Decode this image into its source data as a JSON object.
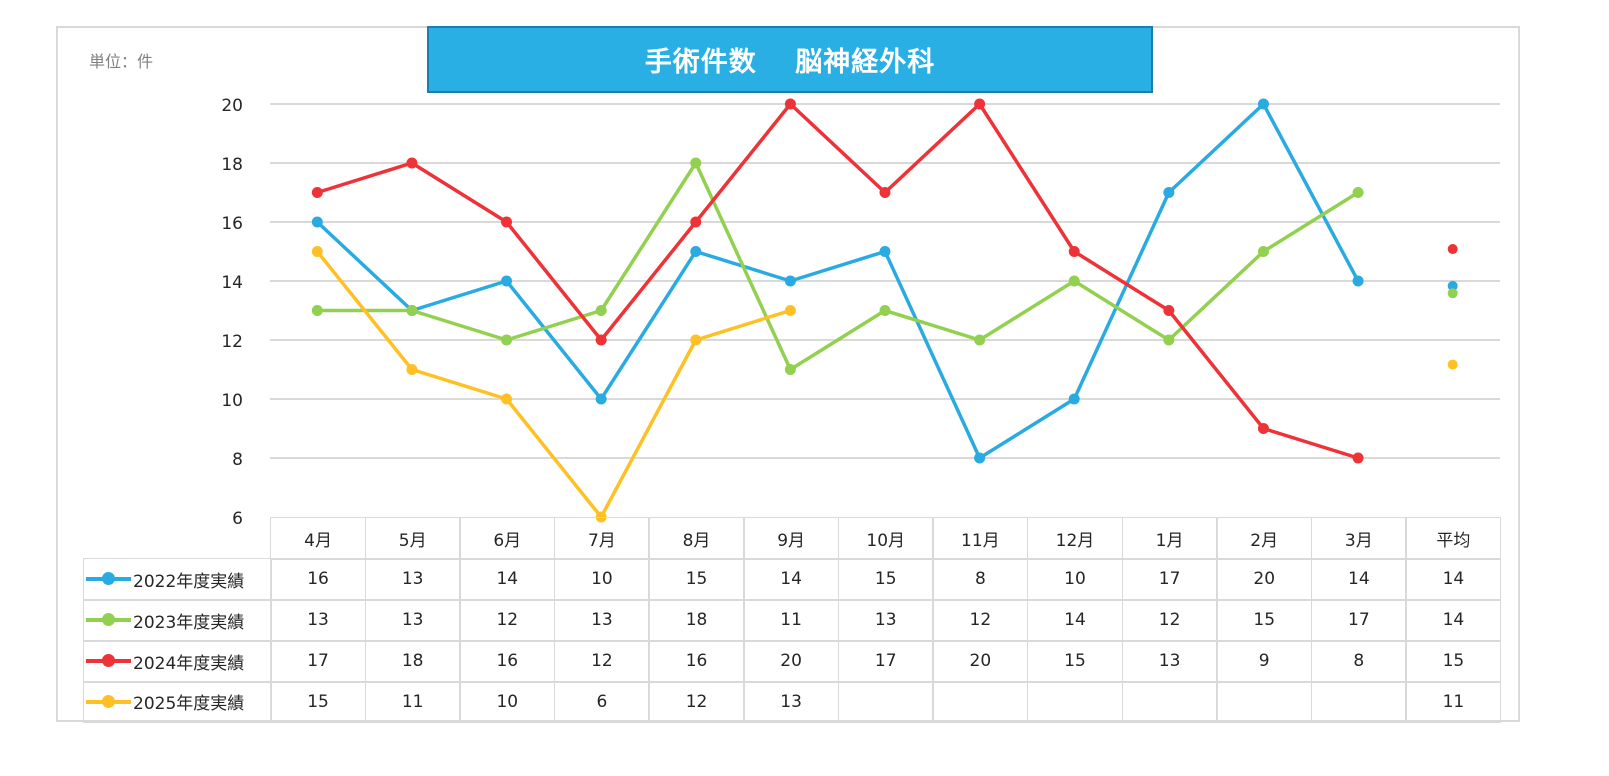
{
  "unit_label": "単位：件",
  "chart_data": {
    "type": "line",
    "title": "手術件数　 脳神経外科",
    "categories": [
      "4月",
      "5月",
      "6月",
      "7月",
      "8月",
      "9月",
      "10月",
      "11月",
      "12月",
      "1月",
      "2月",
      "3月"
    ],
    "avg_label": "平均",
    "ylim": [
      6,
      20
    ],
    "yticks": [
      "6",
      "8",
      "10",
      "12",
      "14",
      "16",
      "18",
      "20"
    ],
    "grid": true,
    "legend": "data-table-left",
    "series": [
      {
        "name": "2022年度実績",
        "color": "#29abe2",
        "values": [
          16,
          13,
          14,
          10,
          15,
          14,
          15,
          8,
          10,
          17,
          20,
          14
        ],
        "avg": "14"
      },
      {
        "name": "2023年度実績",
        "color": "#92d050",
        "values": [
          13,
          13,
          12,
          13,
          18,
          11,
          13,
          12,
          14,
          12,
          15,
          17
        ],
        "avg": "14"
      },
      {
        "name": "2024年度実績",
        "color": "#ee3338",
        "values": [
          17,
          18,
          16,
          12,
          16,
          20,
          17,
          20,
          15,
          13,
          9,
          8
        ],
        "avg": "15"
      },
      {
        "name": "2025年度実績",
        "color": "#ffc024",
        "values": [
          15,
          11,
          10,
          6,
          12,
          13,
          null,
          null,
          null,
          null,
          null,
          null
        ],
        "avg": "11"
      }
    ]
  }
}
